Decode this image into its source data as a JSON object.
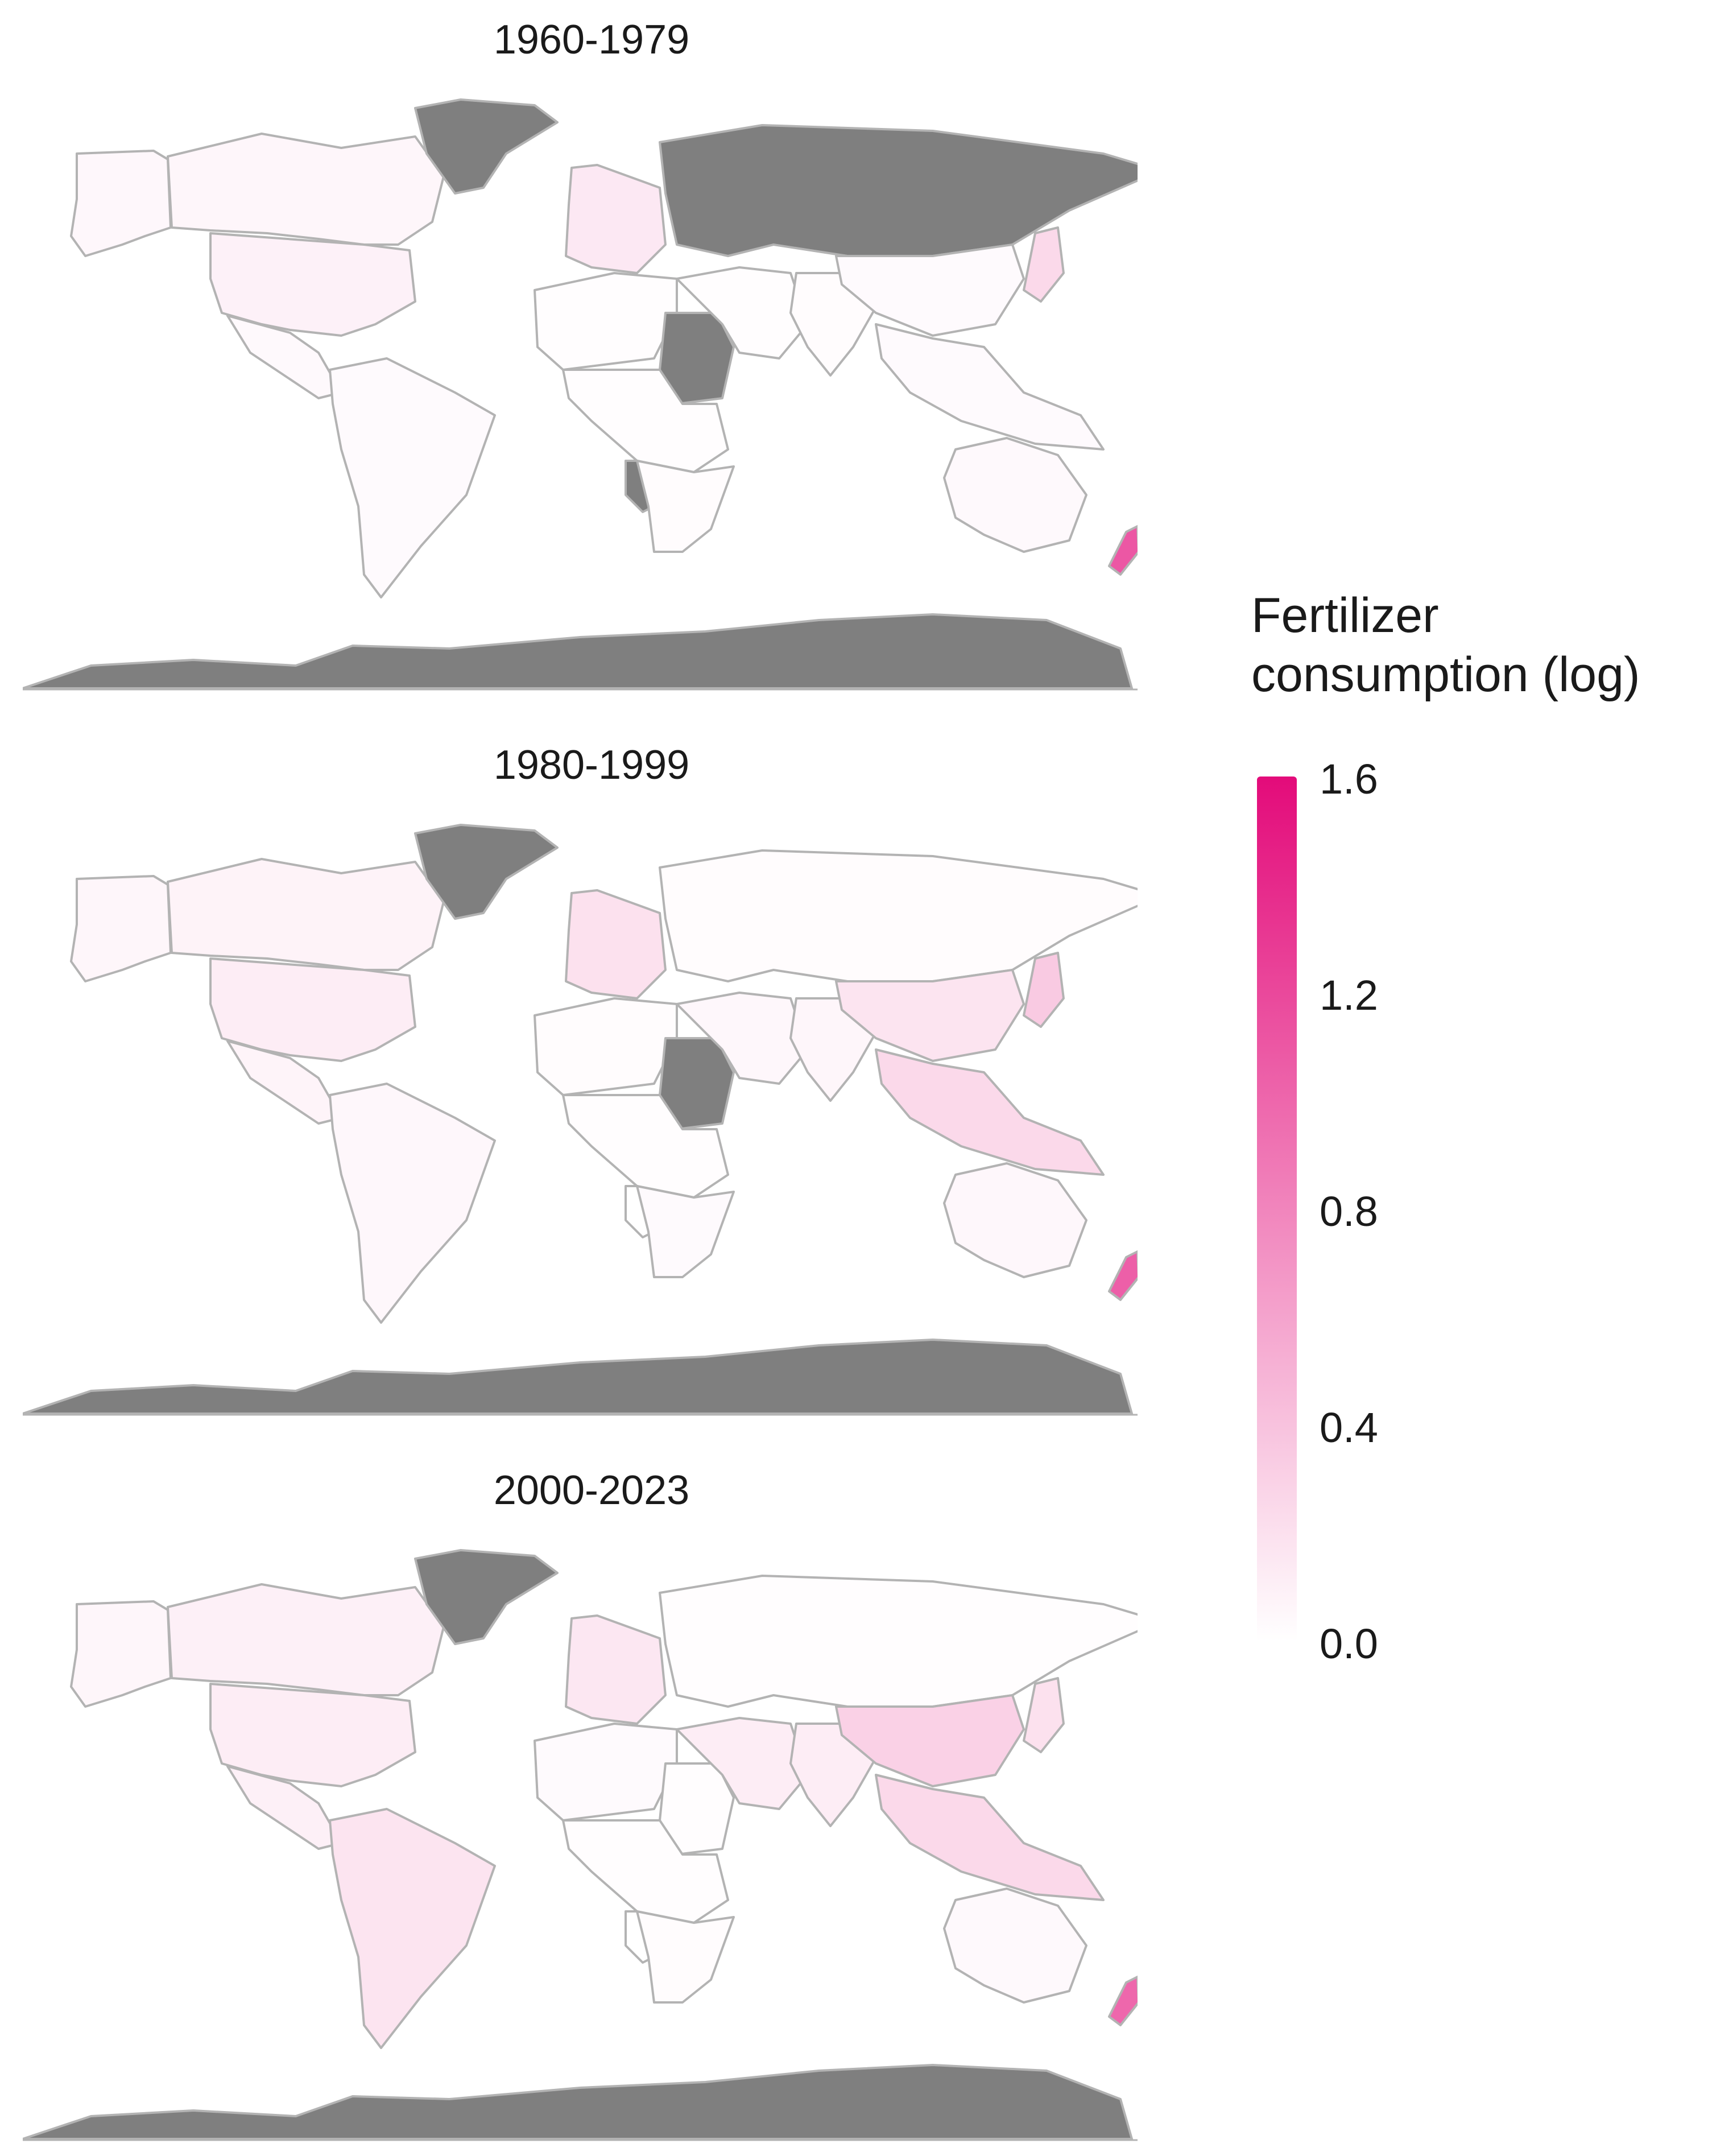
{
  "panels": [
    {
      "title": "1960-1979",
      "regions": [
        {
          "name": "Canada",
          "value": 0.06,
          "missing": false
        },
        {
          "name": "Alaska",
          "value": 0.05,
          "missing": false
        },
        {
          "name": "United States",
          "value": 0.09,
          "missing": false
        },
        {
          "name": "Mexico",
          "value": 0.04,
          "missing": false
        },
        {
          "name": "Greenland",
          "value": null,
          "missing": true
        },
        {
          "name": "South America",
          "value": 0.03,
          "missing": false
        },
        {
          "name": "Europe",
          "value": 0.15,
          "missing": false
        },
        {
          "name": "Soviet Union",
          "value": null,
          "missing": true
        },
        {
          "name": "North Africa",
          "value": 0.01,
          "missing": false
        },
        {
          "name": "Sudan",
          "value": null,
          "missing": true
        },
        {
          "name": "Namibia",
          "value": null,
          "missing": true
        },
        {
          "name": "Central Africa",
          "value": 0.01,
          "missing": false
        },
        {
          "name": "Southern Africa",
          "value": 0.02,
          "missing": false
        },
        {
          "name": "Middle East",
          "value": 0.01,
          "missing": false
        },
        {
          "name": "India",
          "value": 0.02,
          "missing": false
        },
        {
          "name": "China",
          "value": 0.03,
          "missing": false
        },
        {
          "name": "Japan",
          "value": 0.25,
          "missing": false
        },
        {
          "name": "Southeast Asia",
          "value": 0.03,
          "missing": false
        },
        {
          "name": "Australia",
          "value": 0.04,
          "missing": false
        },
        {
          "name": "New Zealand",
          "value": 1.1,
          "missing": false
        },
        {
          "name": "Antarctica",
          "value": null,
          "missing": true
        }
      ]
    },
    {
      "title": "1980-1999",
      "regions": [
        {
          "name": "Canada",
          "value": 0.08,
          "missing": false
        },
        {
          "name": "Alaska",
          "value": 0.06,
          "missing": false
        },
        {
          "name": "United States",
          "value": 0.12,
          "missing": false
        },
        {
          "name": "Mexico",
          "value": 0.07,
          "missing": false
        },
        {
          "name": "Greenland",
          "value": null,
          "missing": true
        },
        {
          "name": "South America",
          "value": 0.05,
          "missing": false
        },
        {
          "name": "Europe",
          "value": 0.2,
          "missing": false
        },
        {
          "name": "Soviet Union",
          "value": 0.02,
          "missing": false
        },
        {
          "name": "North Africa",
          "value": 0.02,
          "missing": false
        },
        {
          "name": "Sudan",
          "value": null,
          "missing": true
        },
        {
          "name": "Namibia",
          "value": 0.0,
          "missing": false
        },
        {
          "name": "Central Africa",
          "value": 0.01,
          "missing": false
        },
        {
          "name": "Southern Africa",
          "value": 0.03,
          "missing": false
        },
        {
          "name": "Middle East",
          "value": 0.05,
          "missing": false
        },
        {
          "name": "India",
          "value": 0.06,
          "missing": false
        },
        {
          "name": "China",
          "value": 0.18,
          "missing": false
        },
        {
          "name": "Japan",
          "value": 0.35,
          "missing": false
        },
        {
          "name": "Southeast Asia",
          "value": 0.25,
          "missing": false
        },
        {
          "name": "Australia",
          "value": 0.05,
          "missing": false
        },
        {
          "name": "New Zealand",
          "value": 1.05,
          "missing": false
        },
        {
          "name": "Antarctica",
          "value": null,
          "missing": true
        }
      ]
    },
    {
      "title": "2000-2023",
      "regions": [
        {
          "name": "Canada",
          "value": 0.1,
          "missing": false
        },
        {
          "name": "Alaska",
          "value": 0.06,
          "missing": false
        },
        {
          "name": "United States",
          "value": 0.12,
          "missing": false
        },
        {
          "name": "Mexico",
          "value": 0.1,
          "missing": false
        },
        {
          "name": "Greenland",
          "value": null,
          "missing": true
        },
        {
          "name": "South America",
          "value": 0.18,
          "missing": false
        },
        {
          "name": "Europe",
          "value": 0.16,
          "missing": false
        },
        {
          "name": "Soviet Union",
          "value": 0.01,
          "missing": false
        },
        {
          "name": "North Africa",
          "value": 0.03,
          "missing": false
        },
        {
          "name": "Sudan",
          "value": 0.01,
          "missing": false
        },
        {
          "name": "Namibia",
          "value": 0.0,
          "missing": false
        },
        {
          "name": "Central Africa",
          "value": 0.01,
          "missing": false
        },
        {
          "name": "Southern Africa",
          "value": 0.02,
          "missing": false
        },
        {
          "name": "Middle East",
          "value": 0.12,
          "missing": false
        },
        {
          "name": "India",
          "value": 0.12,
          "missing": false
        },
        {
          "name": "China",
          "value": 0.3,
          "missing": false
        },
        {
          "name": "Japan",
          "value": 0.2,
          "missing": false
        },
        {
          "name": "Southeast Asia",
          "value": 0.25,
          "missing": false
        },
        {
          "name": "Australia",
          "value": 0.04,
          "missing": false
        },
        {
          "name": "New Zealand",
          "value": 1.0,
          "missing": false
        },
        {
          "name": "Antarctica",
          "value": null,
          "missing": true
        }
      ]
    }
  ],
  "legend": {
    "title_line1": "Fertilizer",
    "title_line2": "consumption (log)",
    "ticks": [
      "1.6",
      "1.2",
      "0.8",
      "0.4",
      "0.0"
    ],
    "min": 0.0,
    "max": 1.6,
    "low_color": "#ffffff",
    "high_color": "#e30b7a"
  },
  "colors": {
    "missing": "#7f7f7f",
    "border": "#b3b3b3"
  }
}
